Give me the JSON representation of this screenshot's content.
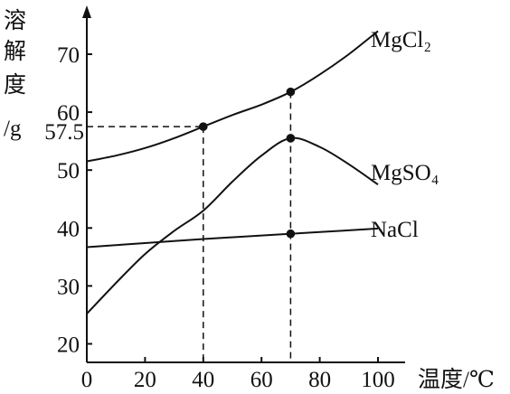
{
  "chart_data": {
    "type": "line",
    "ylabel_chars": [
      "溶",
      "解",
      "度",
      "/g"
    ],
    "xlabel": "温度/℃",
    "xlim": [
      0,
      100
    ],
    "ylim": [
      20,
      70
    ],
    "x_ticks": [
      0,
      20,
      40,
      60,
      80,
      100
    ],
    "y_ticks": [
      20,
      30,
      40,
      50,
      60,
      70
    ],
    "y_extra_tick": 57.5,
    "series": [
      {
        "name": "MgCl₂",
        "x": [
          0,
          10,
          20,
          30,
          40,
          50,
          60,
          70,
          80,
          90,
          100
        ],
        "y": [
          51.5,
          52.5,
          53.8,
          55.5,
          57.5,
          59.5,
          61.3,
          63.5,
          66.5,
          70.0,
          74.0
        ]
      },
      {
        "name": "MgSO₄",
        "x": [
          0,
          10,
          20,
          30,
          40,
          50,
          60,
          70,
          80,
          90,
          100
        ],
        "y": [
          25.2,
          30.5,
          35.5,
          39.5,
          43.0,
          48.0,
          52.5,
          55.5,
          54.0,
          51.0,
          47.5
        ]
      },
      {
        "name": "NaCl",
        "x": [
          0,
          20,
          40,
          60,
          70,
          80,
          100
        ],
        "y": [
          36.7,
          37.4,
          38.1,
          38.7,
          39.0,
          39.3,
          39.9
        ]
      }
    ],
    "marked_points": [
      {
        "x": 40,
        "y": 57.5
      },
      {
        "x": 70,
        "y": 63.5
      },
      {
        "x": 70,
        "y": 55.5
      },
      {
        "x": 70,
        "y": 39.0
      }
    ],
    "guides": [
      {
        "from": [
          0,
          57.5
        ],
        "to": [
          40,
          57.5
        ]
      },
      {
        "from": [
          40,
          57.5
        ],
        "to": [
          40,
          15
        ]
      },
      {
        "from": [
          70,
          63.5
        ],
        "to": [
          70,
          15
        ]
      }
    ]
  }
}
